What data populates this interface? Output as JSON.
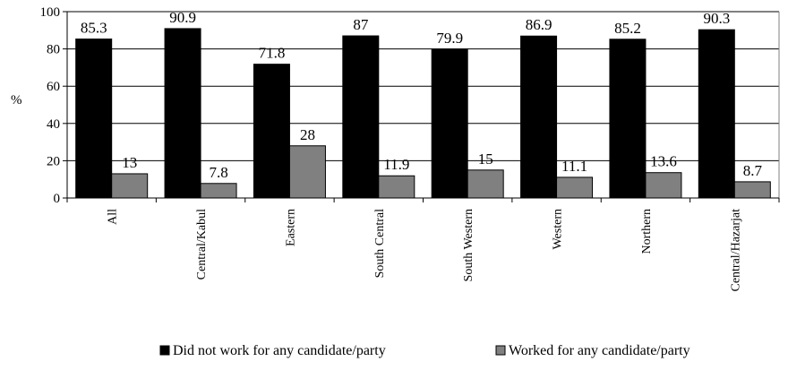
{
  "chart_data": {
    "type": "bar",
    "title": "",
    "xlabel": "",
    "ylabel": "%",
    "ylim": [
      0,
      100
    ],
    "yticks": [
      0,
      20,
      40,
      60,
      80,
      100
    ],
    "grid": true,
    "legend_position": "bottom",
    "categories": [
      "All",
      "Central/Kabul",
      "Eastern",
      "South Central",
      "South Western",
      "Western",
      "Northern",
      "Central/Hazarjat"
    ],
    "series": [
      {
        "name": "Did not work for any candidate/party",
        "color": "#000000",
        "values": [
          85.3,
          90.9,
          71.8,
          87,
          79.9,
          86.9,
          85.2,
          90.3
        ],
        "labels": [
          "85.3",
          "90.9",
          "71.8",
          "87",
          "79.9",
          "86.9",
          "85.2",
          "90.3"
        ]
      },
      {
        "name": "Worked for any candidate/party",
        "color": "#808080",
        "values": [
          13,
          7.8,
          28,
          11.9,
          15,
          11.1,
          13.6,
          8.7
        ],
        "labels": [
          "13",
          "7.8",
          "28",
          "11.9",
          "15",
          "11.1",
          "13.6",
          "8.7"
        ]
      }
    ]
  }
}
